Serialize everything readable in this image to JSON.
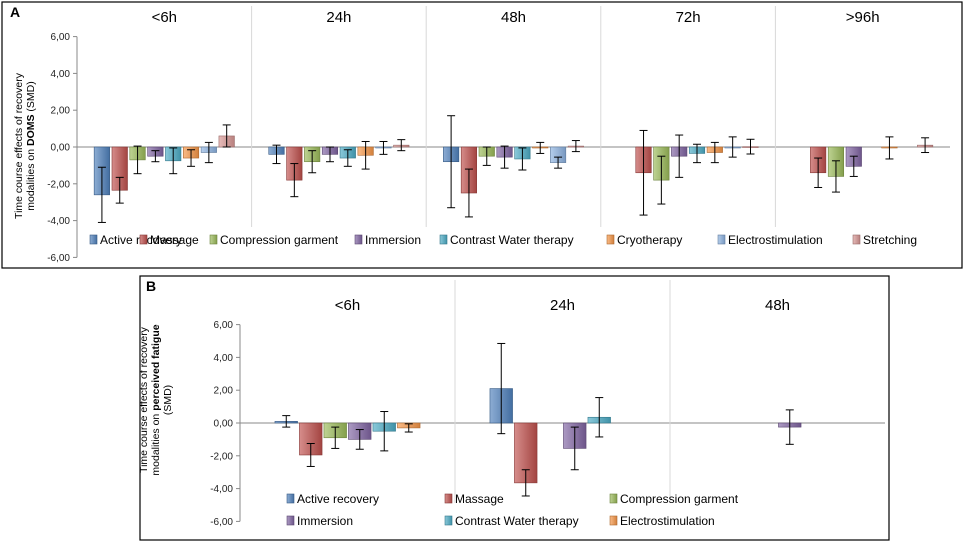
{
  "chart_data": [
    {
      "panel": "A",
      "type": "bar",
      "groups": [
        "<6h",
        "24h",
        "48h",
        "72h",
        ">96h"
      ],
      "ylabel": {
        "line1": "Time course effects of recovery",
        "line2_prefix": "modalities on ",
        "line2_bold": "DOMS",
        "line2_suffix": " (SMD)"
      },
      "yticks": [
        "6,00",
        "4,00",
        "2,00",
        "0,00",
        "-2,00",
        "-4,00",
        "-6,00"
      ],
      "ylim": [
        -6,
        6
      ],
      "grid": false,
      "legend_position": "bottom",
      "series": [
        {
          "name": "Active recovery",
          "color": "#4F81BD",
          "values": [
            -2.6,
            -0.4,
            -0.8,
            null,
            null
          ],
          "err": [
            1.5,
            0.5,
            2.5,
            null,
            null
          ]
        },
        {
          "name": "Massage",
          "color": "#C0504D",
          "values": [
            -2.35,
            -1.8,
            -2.5,
            -1.4,
            -1.4
          ],
          "err": [
            0.7,
            0.9,
            1.3,
            2.3,
            0.8
          ]
        },
        {
          "name": "Compression garment",
          "color": "#9BBB59",
          "values": [
            -0.7,
            -0.8,
            -0.5,
            -1.8,
            -1.6
          ],
          "err": [
            0.75,
            0.6,
            0.5,
            1.3,
            0.85
          ]
        },
        {
          "name": "Immersion",
          "color": "#8064A2",
          "values": [
            -0.5,
            -0.4,
            -0.55,
            -0.5,
            -1.05
          ],
          "err": [
            0.3,
            0.4,
            0.6,
            1.15,
            0.55
          ]
        },
        {
          "name": "Contrast Water therapy",
          "color": "#4BACC6",
          "values": [
            -0.75,
            -0.6,
            -0.65,
            -0.35,
            null
          ],
          "err": [
            0.7,
            0.45,
            0.6,
            0.5,
            null
          ]
        },
        {
          "name": "Cryotherapy",
          "color": "#F79646",
          "values": [
            -0.6,
            -0.45,
            -0.05,
            -0.3,
            -0.05
          ],
          "err": [
            0.45,
            0.75,
            0.3,
            0.55,
            0.6
          ]
        },
        {
          "name": "Electrostimulation",
          "color": "#8DB3E2",
          "values": [
            -0.3,
            -0.05,
            -0.85,
            0.0,
            null
          ],
          "err": [
            0.55,
            0.35,
            0.3,
            0.55,
            null
          ]
        },
        {
          "name": "Stretching",
          "color": "#D99694",
          "values": [
            0.6,
            0.1,
            0.05,
            0.02,
            0.1
          ],
          "err": [
            0.6,
            0.3,
            0.3,
            0.4,
            0.4
          ]
        }
      ]
    },
    {
      "panel": "B",
      "type": "bar",
      "groups": [
        "<6h",
        "24h",
        "48h"
      ],
      "ylabel": {
        "line1": "Time course effects of recovery",
        "line2_prefix": "modalities on ",
        "line2_bold": "perceived fatigue",
        "line2_suffix": "",
        "line3": "(SMD)"
      },
      "yticks": [
        "6,00",
        "4,00",
        "2,00",
        "0,00",
        "-2,00",
        "-4,00",
        "-6,00"
      ],
      "ylim": [
        -6,
        6
      ],
      "grid": false,
      "legend_position": "bottom",
      "series": [
        {
          "name": "Active recovery",
          "color": "#4F81BD",
          "values": [
            0.1,
            2.1,
            null
          ],
          "err": [
            0.35,
            2.75,
            null
          ]
        },
        {
          "name": "Massage",
          "color": "#C0504D",
          "values": [
            -1.95,
            -3.65,
            null
          ],
          "err": [
            0.7,
            0.8,
            null
          ]
        },
        {
          "name": "Compression garment",
          "color": "#9BBB59",
          "values": [
            -0.9,
            null,
            null
          ],
          "err": [
            0.65,
            null,
            null
          ]
        },
        {
          "name": "Immersion",
          "color": "#8064A2",
          "values": [
            -1.0,
            -1.55,
            -0.25
          ],
          "err": [
            0.6,
            1.3,
            1.05
          ]
        },
        {
          "name": "Contrast Water therapy",
          "color": "#4BACC6",
          "values": [
            -0.5,
            0.35,
            null
          ],
          "err": [
            1.2,
            1.2,
            null
          ]
        },
        {
          "name": "Electrostimulation",
          "color": "#F79646",
          "values": [
            -0.3,
            null,
            null
          ],
          "err": [
            0.25,
            null,
            null
          ]
        }
      ]
    }
  ]
}
